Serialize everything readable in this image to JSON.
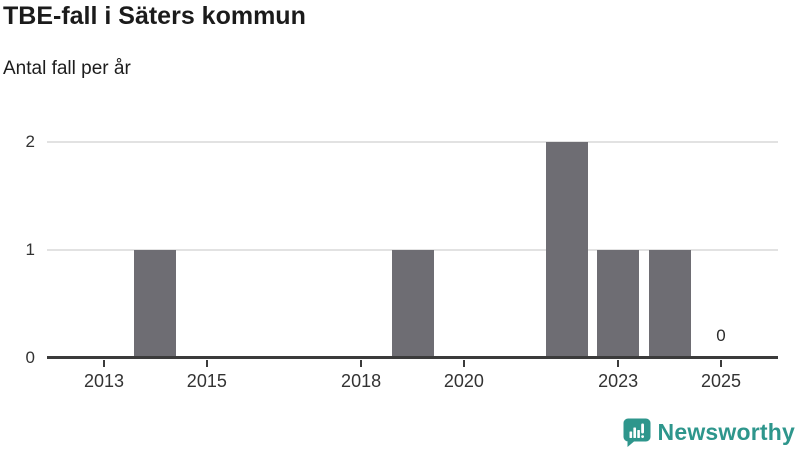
{
  "chart_data": {
    "type": "bar",
    "title": "TBE-fall i Säters kommun",
    "subtitle": "Antal fall per år",
    "categories": [
      "2013",
      "2014",
      "2015",
      "2016",
      "2017",
      "2018",
      "2019",
      "2020",
      "2021",
      "2022",
      "2023",
      "2024",
      "2025"
    ],
    "values": [
      0,
      1,
      0,
      0,
      0,
      0,
      1,
      0,
      0,
      2,
      1,
      1,
      0
    ],
    "x_tick_labels": [
      "2013",
      "2015",
      "2018",
      "2020",
      "2023",
      "2025"
    ],
    "y_ticks": [
      0,
      1,
      2
    ],
    "ylim": [
      0,
      2
    ],
    "grid": true,
    "legend_position": "none",
    "point_labels": [
      {
        "category": "2025",
        "text": "0"
      }
    ],
    "colors": {
      "bar": "#6e6d73",
      "axis": "#3b3b3b",
      "grid": "#e2e2e2",
      "tick_text": "#333333",
      "point_label_text": "#2b2b2b",
      "title_text": "#1b1b1b"
    }
  },
  "footer": {
    "brand": "Newsworthy",
    "brand_color": "#2e968c",
    "logo_icon": "bar-chart-speech-bubble"
  }
}
